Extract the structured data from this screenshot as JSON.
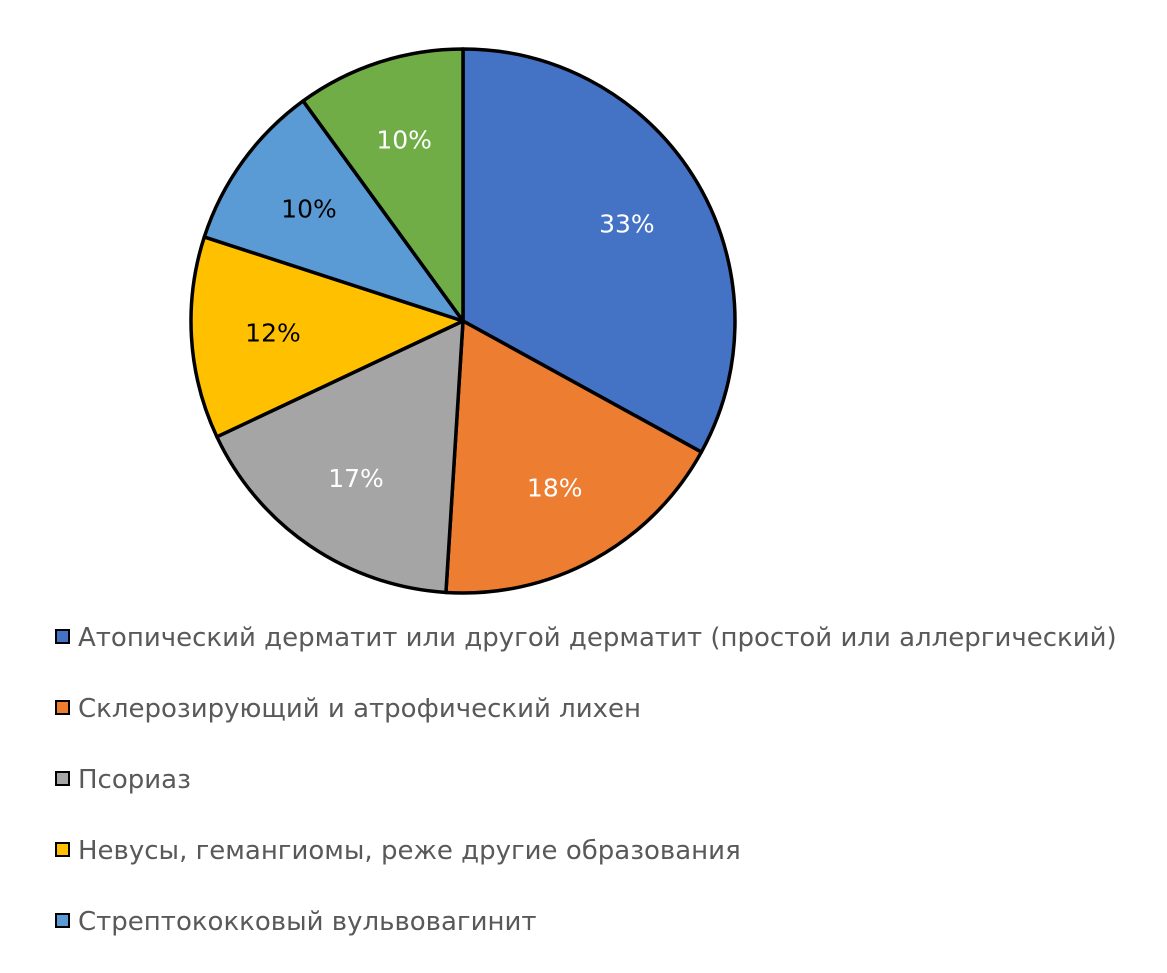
{
  "chart_data": {
    "type": "pie",
    "title": "",
    "slices": [
      {
        "name": "Атопический дерматит или другой дерматит (простой или аллергический)",
        "value": 33,
        "label": "33%",
        "color": "#4472C4",
        "label_color": "#ffffff"
      },
      {
        "name": "Склерозирующий и атрофический лихен",
        "value": 18,
        "label": "18%",
        "color": "#ED7D31",
        "label_color": "#ffffff"
      },
      {
        "name": "Псориаз",
        "value": 17,
        "label": "17%",
        "color": "#A5A5A5",
        "label_color": "#ffffff"
      },
      {
        "name": "Невусы, гемангиомы, реже другие образования",
        "value": 12,
        "label": "12%",
        "color": "#FFC000",
        "label_color": "#000000"
      },
      {
        "name": "Стрептококковый вульвовагинит",
        "value": 10,
        "label": "10%",
        "color": "#5B9BD5",
        "label_color": "#000000"
      },
      {
        "name": "",
        "value": 10,
        "label": "10%",
        "color": "#70AD47",
        "label_color": "#ffffff"
      }
    ],
    "legend_position": "bottom",
    "legend": [
      {
        "label": "Атопический дерматит или другой дерматит (простой или аллергический)",
        "color": "#4472C4"
      },
      {
        "label": "Склерозирующий и атрофический лихен",
        "color": "#ED7D31"
      },
      {
        "label": "Псориаз",
        "color": "#A5A5A5"
      },
      {
        "label": "Невусы, гемангиомы, реже другие образования",
        "color": "#FFC000"
      },
      {
        "label": "Стрептококковый вульвовагинит",
        "color": "#5B9BD5"
      }
    ]
  }
}
